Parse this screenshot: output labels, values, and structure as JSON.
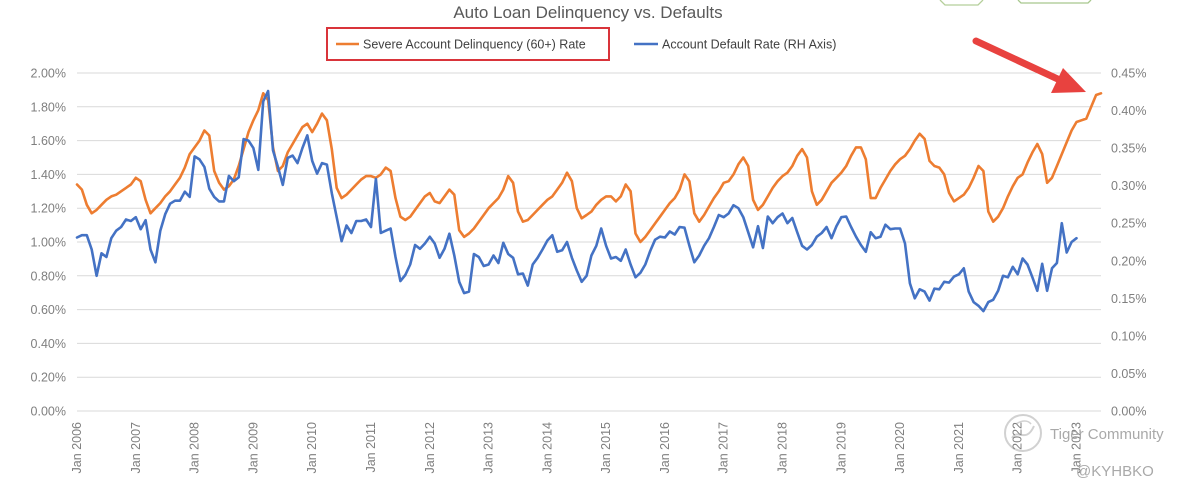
{
  "chart_data": {
    "type": "line",
    "title": "Auto Loan Delinquency vs. Defaults",
    "grid": true,
    "legend_position": "top-center",
    "x_start": "2006-01",
    "x_tick_labels": [
      "Jan 2006",
      "Jan 2007",
      "Jan 2008",
      "Jan 2009",
      "Jan 2010",
      "Jan 2011",
      "Jan 2012",
      "Jan 2013",
      "Jan 2014",
      "Jan 2015",
      "Jan 2016",
      "Jan 2017",
      "Jan 2018",
      "Jan 2019",
      "Jan 2020",
      "Jan 2021",
      "Jan 2022",
      "Jan 2023"
    ],
    "y_left": {
      "min": 0,
      "max": 0.02,
      "step": 0.002,
      "tick_labels": [
        "0.00%",
        "0.20%",
        "0.40%",
        "0.60%",
        "0.80%",
        "1.00%",
        "1.20%",
        "1.40%",
        "1.60%",
        "1.80%",
        "2.00%"
      ]
    },
    "y_right": {
      "min": 0,
      "max": 0.0045,
      "step": 0.0005,
      "tick_labels": [
        "0.00%",
        "0.05%",
        "0.10%",
        "0.15%",
        "0.20%",
        "0.25%",
        "0.30%",
        "0.35%",
        "0.40%",
        "0.45%"
      ]
    },
    "series": [
      {
        "name": "Severe Account Delinquency (60+) Rate",
        "axis": "left",
        "color": "#ed7d31",
        "values": [
          1.34,
          1.31,
          1.22,
          1.17,
          1.19,
          1.22,
          1.25,
          1.27,
          1.28,
          1.3,
          1.32,
          1.34,
          1.38,
          1.36,
          1.25,
          1.17,
          1.2,
          1.23,
          1.27,
          1.3,
          1.34,
          1.38,
          1.44,
          1.52,
          1.56,
          1.6,
          1.66,
          1.63,
          1.42,
          1.35,
          1.31,
          1.33,
          1.37,
          1.45,
          1.55,
          1.65,
          1.72,
          1.78,
          1.88,
          1.84,
          1.56,
          1.42,
          1.45,
          1.53,
          1.58,
          1.63,
          1.68,
          1.7,
          1.65,
          1.7,
          1.76,
          1.72,
          1.55,
          1.32,
          1.26,
          1.28,
          1.31,
          1.34,
          1.37,
          1.39,
          1.39,
          1.38,
          1.4,
          1.44,
          1.42,
          1.26,
          1.15,
          1.13,
          1.15,
          1.19,
          1.23,
          1.27,
          1.29,
          1.24,
          1.23,
          1.27,
          1.31,
          1.28,
          1.07,
          1.03,
          1.05,
          1.08,
          1.12,
          1.16,
          1.2,
          1.23,
          1.26,
          1.31,
          1.39,
          1.35,
          1.18,
          1.12,
          1.13,
          1.16,
          1.19,
          1.22,
          1.25,
          1.27,
          1.31,
          1.35,
          1.41,
          1.36,
          1.2,
          1.14,
          1.16,
          1.18,
          1.22,
          1.25,
          1.27,
          1.27,
          1.24,
          1.27,
          1.34,
          1.3,
          1.05,
          1.0,
          1.03,
          1.07,
          1.11,
          1.15,
          1.19,
          1.23,
          1.26,
          1.31,
          1.4,
          1.36,
          1.17,
          1.12,
          1.16,
          1.21,
          1.26,
          1.3,
          1.35,
          1.36,
          1.4,
          1.46,
          1.5,
          1.45,
          1.25,
          1.19,
          1.22,
          1.27,
          1.32,
          1.36,
          1.39,
          1.41,
          1.45,
          1.51,
          1.55,
          1.5,
          1.3,
          1.22,
          1.25,
          1.3,
          1.35,
          1.38,
          1.41,
          1.45,
          1.51,
          1.56,
          1.56,
          1.49,
          1.26,
          1.26,
          1.32,
          1.37,
          1.42,
          1.46,
          1.49,
          1.51,
          1.55,
          1.6,
          1.64,
          1.61,
          1.48,
          1.45,
          1.44,
          1.4,
          1.29,
          1.24,
          1.26,
          1.28,
          1.32,
          1.38,
          1.45,
          1.42,
          1.18,
          1.12,
          1.15,
          1.2,
          1.27,
          1.33,
          1.38,
          1.4,
          1.47,
          1.53,
          1.58,
          1.52,
          1.35,
          1.38,
          1.45,
          1.52,
          1.59,
          1.66,
          1.71,
          1.72,
          1.73,
          1.8,
          1.87,
          1.88
        ]
      },
      {
        "name": "Account Default Rate (RH Axis)",
        "axis": "right",
        "color": "#4472c4",
        "values": [
          0.231,
          0.234,
          0.234,
          0.215,
          0.18,
          0.21,
          0.205,
          0.23,
          0.24,
          0.245,
          0.255,
          0.253,
          0.258,
          0.242,
          0.254,
          0.215,
          0.198,
          0.24,
          0.262,
          0.276,
          0.28,
          0.28,
          0.292,
          0.285,
          0.339,
          0.335,
          0.325,
          0.296,
          0.285,
          0.279,
          0.279,
          0.313,
          0.306,
          0.311,
          0.362,
          0.36,
          0.35,
          0.321,
          0.412,
          0.426,
          0.347,
          0.325,
          0.301,
          0.337,
          0.34,
          0.33,
          0.35,
          0.367,
          0.333,
          0.316,
          0.33,
          0.328,
          0.29,
          0.258,
          0.226,
          0.247,
          0.237,
          0.253,
          0.253,
          0.255,
          0.245,
          0.309,
          0.237,
          0.24,
          0.243,
          0.205,
          0.173,
          0.181,
          0.195,
          0.221,
          0.216,
          0.223,
          0.232,
          0.223,
          0.204,
          0.216,
          0.236,
          0.207,
          0.172,
          0.157,
          0.159,
          0.209,
          0.205,
          0.193,
          0.195,
          0.207,
          0.197,
          0.224,
          0.209,
          0.204,
          0.182,
          0.183,
          0.167,
          0.195,
          0.204,
          0.215,
          0.227,
          0.234,
          0.212,
          0.214,
          0.225,
          0.204,
          0.187,
          0.172,
          0.18,
          0.207,
          0.22,
          0.243,
          0.22,
          0.203,
          0.205,
          0.2,
          0.215,
          0.195,
          0.178,
          0.184,
          0.195,
          0.213,
          0.228,
          0.232,
          0.231,
          0.239,
          0.235,
          0.245,
          0.244,
          0.22,
          0.198,
          0.207,
          0.22,
          0.23,
          0.245,
          0.261,
          0.258,
          0.263,
          0.274,
          0.27,
          0.258,
          0.238,
          0.218,
          0.246,
          0.217,
          0.259,
          0.25,
          0.258,
          0.263,
          0.25,
          0.257,
          0.238,
          0.22,
          0.215,
          0.221,
          0.232,
          0.237,
          0.245,
          0.23,
          0.246,
          0.258,
          0.259,
          0.245,
          0.232,
          0.221,
          0.212,
          0.238,
          0.23,
          0.232,
          0.248,
          0.242,
          0.243,
          0.243,
          0.223,
          0.17,
          0.15,
          0.162,
          0.159,
          0.147,
          0.163,
          0.162,
          0.172,
          0.171,
          0.179,
          0.182,
          0.19,
          0.159,
          0.145,
          0.14,
          0.133,
          0.145,
          0.148,
          0.16,
          0.18,
          0.178,
          0.192,
          0.182,
          0.203,
          0.195,
          0.178,
          0.16,
          0.196,
          0.16,
          0.19,
          0.197,
          0.25,
          0.211,
          0.225,
          0.23
        ]
      }
    ],
    "highlight_box_series": "Severe Account Delinquency (60+) Rate",
    "arrow_target": "end of Severe Account Delinquency (60+) Rate"
  },
  "watermark": {
    "line1": "Tiger Community",
    "line2": "@KYHBKO"
  },
  "colors": {
    "highlight_box": "#d9343a",
    "arrow": "#e8423f",
    "grid": "#d9d9d9",
    "axis_text": "#7f7f7f"
  }
}
